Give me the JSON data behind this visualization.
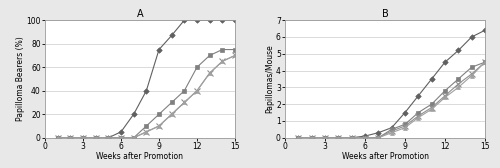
{
  "weeks": [
    1,
    2,
    3,
    4,
    5,
    6,
    7,
    8,
    9,
    10,
    11,
    12,
    13,
    14,
    15
  ],
  "A_control": [
    0,
    0,
    0,
    0,
    0,
    5,
    20,
    40,
    75,
    87,
    100,
    100,
    100,
    100,
    100
  ],
  "A_comp13": [
    0,
    0,
    0,
    0,
    0,
    0,
    0,
    10,
    20,
    30,
    40,
    60,
    70,
    75,
    75
  ],
  "A_comp15": [
    0,
    0,
    0,
    0,
    0,
    0,
    0,
    5,
    10,
    20,
    30,
    40,
    55,
    65,
    70
  ],
  "A_comp19": [
    0,
    0,
    0,
    0,
    0,
    0,
    0,
    5,
    10,
    20,
    30,
    40,
    55,
    65,
    70
  ],
  "B_control": [
    0,
    0,
    0,
    0,
    0,
    0.1,
    0.3,
    0.6,
    1.5,
    2.5,
    3.5,
    4.5,
    5.2,
    6.0,
    6.4
  ],
  "B_comp13": [
    0,
    0,
    0,
    0,
    0,
    0,
    0,
    0.5,
    0.8,
    1.5,
    2.0,
    2.8,
    3.5,
    4.2,
    4.5
  ],
  "B_comp15": [
    0,
    0,
    0,
    0,
    0,
    0,
    0,
    0.4,
    0.7,
    1.3,
    1.8,
    2.5,
    3.2,
    3.8,
    4.5
  ],
  "B_comp19": [
    0,
    0,
    0,
    0,
    0,
    0,
    0,
    0.3,
    0.6,
    1.2,
    1.7,
    2.4,
    3.0,
    3.7,
    4.5
  ],
  "color_control": "#606060",
  "color_comp13": "#808080",
  "color_comp15": "#909090",
  "color_comp19": "#a0a0a0",
  "title_A": "A",
  "title_B": "B",
  "xlabel": "Weeks after Promotion",
  "ylabel_A": "Papilloma Bearers (%)",
  "ylabel_B": "Papillomas/Mouse",
  "xlim": [
    0,
    15
  ],
  "ylim_A": [
    0,
    100
  ],
  "ylim_B": [
    0,
    7
  ],
  "xticks": [
    0,
    3,
    6,
    9,
    12,
    15
  ],
  "yticks_A": [
    0,
    20,
    40,
    60,
    80,
    100
  ],
  "yticks_B": [
    0,
    1,
    2,
    3,
    4,
    5,
    6,
    7
  ],
  "outer_bg": "#e8e8e8",
  "panel_bg": "#ffffff",
  "grid_color": "#cccccc"
}
